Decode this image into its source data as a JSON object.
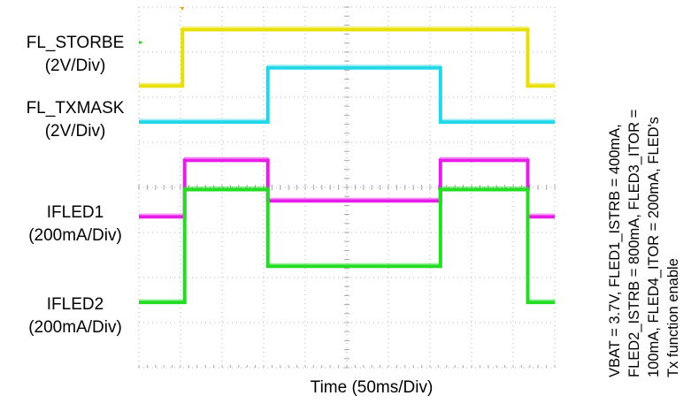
{
  "chart_data": {
    "type": "line",
    "title": "",
    "xlabel": "Time  (50ms/Div)",
    "ylabel": "",
    "x_divisions": 10,
    "y_divisions": 8,
    "grid": true,
    "channel_labels": [
      {
        "name": "FL_STORBE",
        "scale": "(2V/Div)"
      },
      {
        "name": "FL_TXMASK",
        "scale": "(2V/Div)"
      },
      {
        "name": "IFLED1",
        "scale": "(200mA/Div)"
      },
      {
        "name": "IFLED2",
        "scale": "(200mA/Div)"
      }
    ],
    "conditions": [
      "VBAT = 3.7V, FLED1_ISTRB = 400mA,",
      "FLED2_ISTRB = 800mA, FLED3_ITOR =",
      "100mA, FLED4_ITOR = 200mA, FLED's",
      "Tx function enable"
    ],
    "series": [
      {
        "color": "#e8e000",
        "x": [
          0,
          1.05,
          1.05,
          9.35,
          9.35,
          10
        ],
        "y": [
          6.25,
          6.25,
          7.5,
          7.5,
          6.25,
          6.25
        ]
      },
      {
        "color": "#22d8e8",
        "x": [
          0,
          3.1,
          3.1,
          7.25,
          7.25,
          10
        ],
        "y": [
          5.45,
          5.45,
          6.65,
          6.65,
          5.45,
          5.45
        ]
      },
      {
        "color": "#e81ce8",
        "x": [
          0,
          1.1,
          1.1,
          3.1,
          3.1,
          7.25,
          7.25,
          9.35,
          9.35,
          10
        ],
        "y": [
          3.35,
          3.35,
          4.6,
          4.6,
          3.7,
          3.7,
          4.6,
          4.6,
          3.35,
          3.35
        ]
      },
      {
        "color": "#22dd22",
        "x": [
          0,
          1.1,
          1.1,
          3.1,
          3.1,
          7.25,
          7.25,
          9.35,
          9.35,
          10
        ],
        "y": [
          1.45,
          1.45,
          3.95,
          3.95,
          2.25,
          2.25,
          3.95,
          3.95,
          1.45,
          1.45
        ]
      }
    ]
  }
}
